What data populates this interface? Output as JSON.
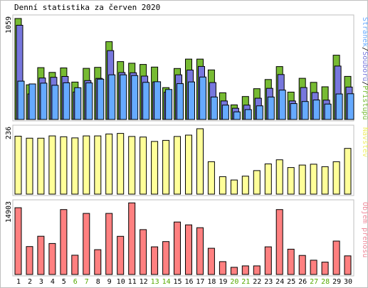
{
  "chart_data": {
    "type": "bar",
    "title": "Denní statistika za červen 2020",
    "categories": [
      "1",
      "2",
      "3",
      "4",
      "5",
      "6",
      "7",
      "8",
      "9",
      "10",
      "11",
      "12",
      "13",
      "14",
      "15",
      "16",
      "17",
      "18",
      "19",
      "20",
      "21",
      "22",
      "23",
      "24",
      "25",
      "26",
      "27",
      "28",
      "29",
      "30"
    ],
    "weekend_days": [
      "6",
      "7",
      "13",
      "14",
      "20",
      "21",
      "27",
      "28"
    ],
    "colors": {
      "weekday_tick": "#000000",
      "weekend_tick": "#55aa00",
      "frame": "#bfbfbf",
      "panel_bg": "#ffffff",
      "bar_stroke": "#000000"
    },
    "panels": [
      {
        "ymax_label": "1059",
        "ylim": [
          0,
          1059
        ],
        "legend": [
          {
            "text": "Stránek",
            "color": "#66aaff"
          },
          {
            "text": "/",
            "color": "#000000"
          },
          {
            "text": "Souborů",
            "color": "#7777dd"
          },
          {
            "text": "/",
            "color": "#000000"
          },
          {
            "text": "Přístupů",
            "color": "#77bb33"
          }
        ],
        "series": [
          {
            "name": "Přístupů",
            "color": "#77bb33",
            "values": [
              1059,
              364,
              544,
              494,
              541,
              392,
              536,
              547,
              816,
              607,
              590,
              577,
              550,
              334,
              535,
              633,
              633,
              520,
              280,
              153,
              241,
              323,
              419,
              555,
              287,
              432,
              389,
              343,
              674,
              452
            ]
          },
          {
            "name": "Souborů",
            "color": "#7777dd",
            "values": [
              988,
              268,
              435,
              442,
              451,
              288,
              408,
              431,
              722,
              492,
              490,
              455,
              394,
              286,
              468,
              518,
              556,
              387,
              195,
              118,
              151,
              223,
              327,
              471,
              195,
              335,
              283,
              203,
              560,
              340
            ]
          },
          {
            "name": "Stránek",
            "color": "#66aaff",
            "values": [
              402,
              373,
              381,
              359,
              385,
              333,
              383,
              423,
              468,
              468,
              461,
              389,
              396,
              315,
              376,
              394,
              445,
              236,
              151,
              80,
              104,
              143,
              236,
              308,
              167,
              189,
              204,
              162,
              268,
              270
            ]
          }
        ]
      },
      {
        "ymax_label": "236",
        "ylim": [
          0,
          236
        ],
        "legend": [
          {
            "text": "Návštěv",
            "color": "#eeee66"
          }
        ],
        "series": [
          {
            "name": "Návštěv",
            "color": "#ffff99",
            "values": [
              209,
              202,
              202,
              210,
              207,
              203,
              210,
              210,
              217,
              219,
              208,
              206,
              190,
              194,
              208,
              213,
              236,
              117,
              63,
              51,
              65,
              85,
              109,
              124,
              96,
              105,
              108,
              99,
              117,
              165
            ]
          }
        ]
      },
      {
        "ymax_label": "14903",
        "ylim": [
          0,
          14903
        ],
        "legend": [
          {
            "text": "Objem přenosu",
            "color": "#ee8899"
          }
        ],
        "series": [
          {
            "name": "Objem přenosu",
            "color": "#ff8080",
            "values": [
              14000,
              5858,
              8021,
              6500,
              13600,
              4034,
              12800,
              5200,
              12800,
              8000,
              15000,
              9400,
              5800,
              6900,
              11000,
              10400,
              9800,
              5500,
              2700,
              1500,
              1800,
              1800,
              5800,
              13600,
              5300,
              4000,
              3000,
              2600,
              7000,
              3900
            ]
          }
        ]
      }
    ]
  }
}
